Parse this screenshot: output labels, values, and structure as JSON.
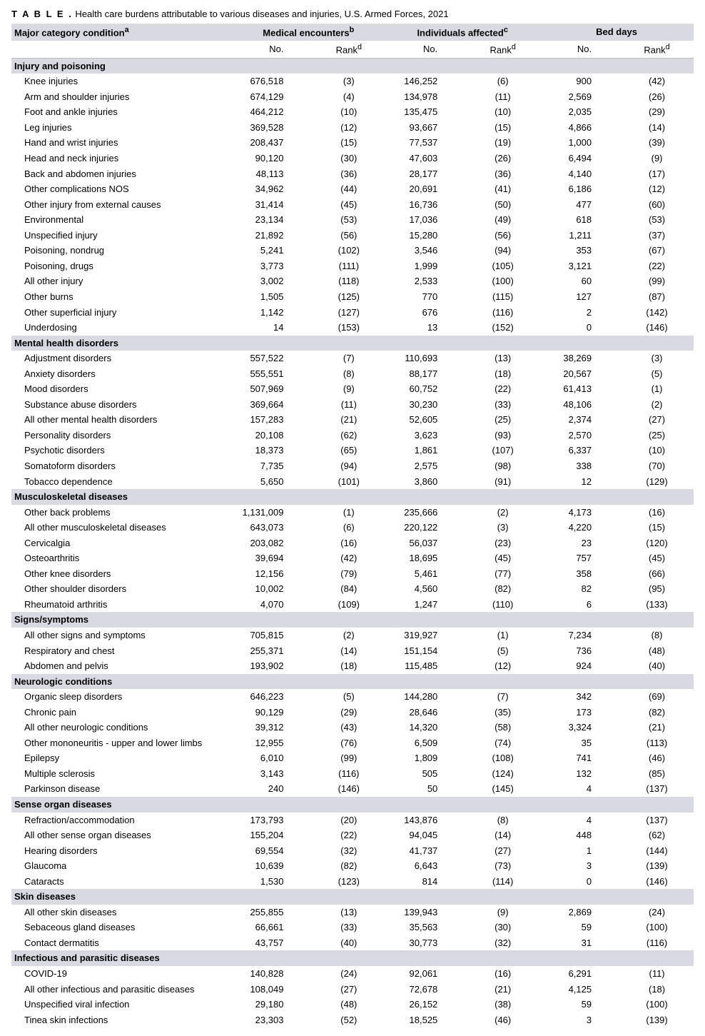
{
  "title_prefix": "T A B L E .",
  "title_text": " Health care burdens attributable to various diseases and injuries, U.S. Armed Forces, 2021",
  "headers": {
    "condition": "Major category condition",
    "sup_a": "a",
    "group1": "Medical encounters",
    "sup_b": "b",
    "group2": "Individuals affected",
    "sup_c": "c",
    "group3": "Bed days",
    "no": "No.",
    "rank": "Rank",
    "sup_d": "d"
  },
  "sections": [
    {
      "name": "Injury and poisoning",
      "rows": [
        {
          "label": "Knee injuries",
          "me_no": "676,518",
          "me_rk": "(3)",
          "ia_no": "146,252",
          "ia_rk": "(6)",
          "bd_no": "900",
          "bd_rk": "(42)"
        },
        {
          "label": "Arm and shoulder injuries",
          "me_no": "674,129",
          "me_rk": "(4)",
          "ia_no": "134,978",
          "ia_rk": "(11)",
          "bd_no": "2,569",
          "bd_rk": "(26)"
        },
        {
          "label": "Foot and ankle injuries",
          "me_no": "464,212",
          "me_rk": "(10)",
          "ia_no": "135,475",
          "ia_rk": "(10)",
          "bd_no": "2,035",
          "bd_rk": "(29)"
        },
        {
          "label": "Leg injuries",
          "me_no": "369,528",
          "me_rk": "(12)",
          "ia_no": "93,667",
          "ia_rk": "(15)",
          "bd_no": "4,866",
          "bd_rk": "(14)"
        },
        {
          "label": "Hand and wrist injuries",
          "me_no": "208,437",
          "me_rk": "(15)",
          "ia_no": "77,537",
          "ia_rk": "(19)",
          "bd_no": "1,000",
          "bd_rk": "(39)"
        },
        {
          "label": "Head and neck injuries",
          "me_no": "90,120",
          "me_rk": "(30)",
          "ia_no": "47,603",
          "ia_rk": "(26)",
          "bd_no": "6,494",
          "bd_rk": "(9)"
        },
        {
          "label": "Back and abdomen injuries",
          "me_no": "48,113",
          "me_rk": "(36)",
          "ia_no": "28,177",
          "ia_rk": "(36)",
          "bd_no": "4,140",
          "bd_rk": "(17)"
        },
        {
          "label": "Other complications NOS",
          "me_no": "34,962",
          "me_rk": "(44)",
          "ia_no": "20,691",
          "ia_rk": "(41)",
          "bd_no": "6,186",
          "bd_rk": "(12)"
        },
        {
          "label": "Other injury from external causes",
          "me_no": "31,414",
          "me_rk": "(45)",
          "ia_no": "16,736",
          "ia_rk": "(50)",
          "bd_no": "477",
          "bd_rk": "(60)"
        },
        {
          "label": "Environmental",
          "me_no": "23,134",
          "me_rk": "(53)",
          "ia_no": "17,036",
          "ia_rk": "(49)",
          "bd_no": "618",
          "bd_rk": "(53)"
        },
        {
          "label": "Unspecified injury",
          "me_no": "21,892",
          "me_rk": "(56)",
          "ia_no": "15,280",
          "ia_rk": "(56)",
          "bd_no": "1,211",
          "bd_rk": "(37)"
        },
        {
          "label": "Poisoning, nondrug",
          "me_no": "5,241",
          "me_rk": "(102)",
          "ia_no": "3,546",
          "ia_rk": "(94)",
          "bd_no": "353",
          "bd_rk": "(67)"
        },
        {
          "label": "Poisoning, drugs",
          "me_no": "3,773",
          "me_rk": "(111)",
          "ia_no": "1,999",
          "ia_rk": "(105)",
          "bd_no": "3,121",
          "bd_rk": "(22)"
        },
        {
          "label": "All other injury",
          "me_no": "3,002",
          "me_rk": "(118)",
          "ia_no": "2,533",
          "ia_rk": "(100)",
          "bd_no": "60",
          "bd_rk": "(99)"
        },
        {
          "label": "Other burns",
          "me_no": "1,505",
          "me_rk": "(125)",
          "ia_no": "770",
          "ia_rk": "(115)",
          "bd_no": "127",
          "bd_rk": "(87)"
        },
        {
          "label": "Other superficial injury",
          "me_no": "1,142",
          "me_rk": "(127)",
          "ia_no": "676",
          "ia_rk": "(116)",
          "bd_no": "2",
          "bd_rk": "(142)"
        },
        {
          "label": "Underdosing",
          "me_no": "14",
          "me_rk": "(153)",
          "ia_no": "13",
          "ia_rk": "(152)",
          "bd_no": "0",
          "bd_rk": "(146)"
        }
      ]
    },
    {
      "name": "Mental health disorders",
      "rows": [
        {
          "label": "Adjustment disorders",
          "me_no": "557,522",
          "me_rk": "(7)",
          "ia_no": "110,693",
          "ia_rk": "(13)",
          "bd_no": "38,269",
          "bd_rk": "(3)"
        },
        {
          "label": "Anxiety disorders",
          "me_no": "555,551",
          "me_rk": "(8)",
          "ia_no": "88,177",
          "ia_rk": "(18)",
          "bd_no": "20,567",
          "bd_rk": "(5)"
        },
        {
          "label": "Mood disorders",
          "me_no": "507,969",
          "me_rk": "(9)",
          "ia_no": "60,752",
          "ia_rk": "(22)",
          "bd_no": "61,413",
          "bd_rk": "(1)"
        },
        {
          "label": "Substance abuse disorders",
          "me_no": "369,664",
          "me_rk": "(11)",
          "ia_no": "30,230",
          "ia_rk": "(33)",
          "bd_no": "48,106",
          "bd_rk": "(2)"
        },
        {
          "label": "All other mental health disorders",
          "me_no": "157,283",
          "me_rk": "(21)",
          "ia_no": "52,605",
          "ia_rk": "(25)",
          "bd_no": "2,374",
          "bd_rk": "(27)"
        },
        {
          "label": "Personality disorders",
          "me_no": "20,108",
          "me_rk": "(62)",
          "ia_no": "3,623",
          "ia_rk": "(93)",
          "bd_no": "2,570",
          "bd_rk": "(25)"
        },
        {
          "label": "Psychotic disorders",
          "me_no": "18,373",
          "me_rk": "(65)",
          "ia_no": "1,861",
          "ia_rk": "(107)",
          "bd_no": "6,337",
          "bd_rk": "(10)"
        },
        {
          "label": "Somatoform disorders",
          "me_no": "7,735",
          "me_rk": "(94)",
          "ia_no": "2,575",
          "ia_rk": "(98)",
          "bd_no": "338",
          "bd_rk": "(70)"
        },
        {
          "label": "Tobacco dependence",
          "me_no": "5,650",
          "me_rk": "(101)",
          "ia_no": "3,860",
          "ia_rk": "(91)",
          "bd_no": "12",
          "bd_rk": "(129)"
        }
      ]
    },
    {
      "name": "Musculoskeletal diseases",
      "rows": [
        {
          "label": "Other back problems",
          "me_no": "1,131,009",
          "me_rk": "(1)",
          "ia_no": "235,666",
          "ia_rk": "(2)",
          "bd_no": "4,173",
          "bd_rk": "(16)"
        },
        {
          "label": "All other musculoskeletal diseases",
          "me_no": "643,073",
          "me_rk": "(6)",
          "ia_no": "220,122",
          "ia_rk": "(3)",
          "bd_no": "4,220",
          "bd_rk": "(15)"
        },
        {
          "label": "Cervicalgia",
          "me_no": "203,082",
          "me_rk": "(16)",
          "ia_no": "56,037",
          "ia_rk": "(23)",
          "bd_no": "23",
          "bd_rk": "(120)"
        },
        {
          "label": "Osteoarthritis",
          "me_no": "39,694",
          "me_rk": "(42)",
          "ia_no": "18,695",
          "ia_rk": "(45)",
          "bd_no": "757",
          "bd_rk": "(45)"
        },
        {
          "label": "Other knee disorders",
          "me_no": "12,156",
          "me_rk": "(79)",
          "ia_no": "5,461",
          "ia_rk": "(77)",
          "bd_no": "358",
          "bd_rk": "(66)"
        },
        {
          "label": "Other shoulder disorders",
          "me_no": "10,002",
          "me_rk": "(84)",
          "ia_no": "4,560",
          "ia_rk": "(82)",
          "bd_no": "82",
          "bd_rk": "(95)"
        },
        {
          "label": "Rheumatoid arthritis",
          "me_no": "4,070",
          "me_rk": "(109)",
          "ia_no": "1,247",
          "ia_rk": "(110)",
          "bd_no": "6",
          "bd_rk": "(133)"
        }
      ]
    },
    {
      "name": "Signs/symptoms",
      "rows": [
        {
          "label": "All other signs and symptoms",
          "me_no": "705,815",
          "me_rk": "(2)",
          "ia_no": "319,927",
          "ia_rk": "(1)",
          "bd_no": "7,234",
          "bd_rk": "(8)"
        },
        {
          "label": "Respiratory and chest",
          "me_no": "255,371",
          "me_rk": "(14)",
          "ia_no": "151,154",
          "ia_rk": "(5)",
          "bd_no": "736",
          "bd_rk": "(48)"
        },
        {
          "label": "Abdomen and pelvis",
          "me_no": "193,902",
          "me_rk": "(18)",
          "ia_no": "115,485",
          "ia_rk": "(12)",
          "bd_no": "924",
          "bd_rk": "(40)"
        }
      ]
    },
    {
      "name": "Neurologic conditions",
      "rows": [
        {
          "label": "Organic sleep disorders",
          "me_no": "646,223",
          "me_rk": "(5)",
          "ia_no": "144,280",
          "ia_rk": "(7)",
          "bd_no": "342",
          "bd_rk": "(69)"
        },
        {
          "label": "Chronic pain",
          "me_no": "90,129",
          "me_rk": "(29)",
          "ia_no": "28,646",
          "ia_rk": "(35)",
          "bd_no": "173",
          "bd_rk": "(82)"
        },
        {
          "label": "All other neurologic conditions",
          "me_no": "39,312",
          "me_rk": "(43)",
          "ia_no": "14,320",
          "ia_rk": "(58)",
          "bd_no": "3,324",
          "bd_rk": "(21)"
        },
        {
          "label": "Other mononeuritis - upper and lower limbs",
          "me_no": "12,955",
          "me_rk": "(76)",
          "ia_no": "6,509",
          "ia_rk": "(74)",
          "bd_no": "35",
          "bd_rk": "(113)"
        },
        {
          "label": "Epilepsy",
          "me_no": "6,010",
          "me_rk": "(99)",
          "ia_no": "1,809",
          "ia_rk": "(108)",
          "bd_no": "741",
          "bd_rk": "(46)"
        },
        {
          "label": "Multiple sclerosis",
          "me_no": "3,143",
          "me_rk": "(116)",
          "ia_no": "505",
          "ia_rk": "(124)",
          "bd_no": "132",
          "bd_rk": "(85)"
        },
        {
          "label": "Parkinson disease",
          "me_no": "240",
          "me_rk": "(146)",
          "ia_no": "50",
          "ia_rk": "(145)",
          "bd_no": "4",
          "bd_rk": "(137)"
        }
      ]
    },
    {
      "name": "Sense organ diseases",
      "rows": [
        {
          "label": "Refraction/accommodation",
          "me_no": "173,793",
          "me_rk": "(20)",
          "ia_no": "143,876",
          "ia_rk": "(8)",
          "bd_no": "4",
          "bd_rk": "(137)"
        },
        {
          "label": "All other sense organ diseases",
          "me_no": "155,204",
          "me_rk": "(22)",
          "ia_no": "94,045",
          "ia_rk": "(14)",
          "bd_no": "448",
          "bd_rk": "(62)"
        },
        {
          "label": "Hearing disorders",
          "me_no": "69,554",
          "me_rk": "(32)",
          "ia_no": "41,737",
          "ia_rk": "(27)",
          "bd_no": "1",
          "bd_rk": "(144)"
        },
        {
          "label": "Glaucoma",
          "me_no": "10,639",
          "me_rk": "(82)",
          "ia_no": "6,643",
          "ia_rk": "(73)",
          "bd_no": "3",
          "bd_rk": "(139)"
        },
        {
          "label": "Cataracts",
          "me_no": "1,530",
          "me_rk": "(123)",
          "ia_no": "814",
          "ia_rk": "(114)",
          "bd_no": "0",
          "bd_rk": "(146)"
        }
      ]
    },
    {
      "name": "Skin diseases",
      "rows": [
        {
          "label": "All other skin diseases",
          "me_no": "255,855",
          "me_rk": "(13)",
          "ia_no": "139,943",
          "ia_rk": "(9)",
          "bd_no": "2,869",
          "bd_rk": "(24)"
        },
        {
          "label": "Sebaceous gland diseases",
          "me_no": "66,661",
          "me_rk": "(33)",
          "ia_no": "35,563",
          "ia_rk": "(30)",
          "bd_no": "59",
          "bd_rk": "(100)"
        },
        {
          "label": "Contact dermatitis",
          "me_no": "43,757",
          "me_rk": "(40)",
          "ia_no": "30,773",
          "ia_rk": "(32)",
          "bd_no": "31",
          "bd_rk": "(116)"
        }
      ]
    },
    {
      "name": "Infectious and parasitic diseases",
      "rows": [
        {
          "label": "COVID-19",
          "me_no": "140,828",
          "me_rk": "(24)",
          "ia_no": "92,061",
          "ia_rk": "(16)",
          "bd_no": "6,291",
          "bd_rk": "(11)"
        },
        {
          "label": "All other infectious and parasitic diseases",
          "me_no": "108,049",
          "me_rk": "(27)",
          "ia_no": "72,678",
          "ia_rk": "(21)",
          "bd_no": "4,125",
          "bd_rk": "(18)"
        },
        {
          "label": "Unspecified viral infection",
          "me_no": "29,180",
          "me_rk": "(48)",
          "ia_no": "26,152",
          "ia_rk": "(38)",
          "bd_no": "59",
          "bd_rk": "(100)"
        },
        {
          "label": "Tinea skin infections",
          "me_no": "23,303",
          "me_rk": "(52)",
          "ia_no": "18,525",
          "ia_rk": "(46)",
          "bd_no": "3",
          "bd_rk": "(139)"
        }
      ]
    }
  ]
}
